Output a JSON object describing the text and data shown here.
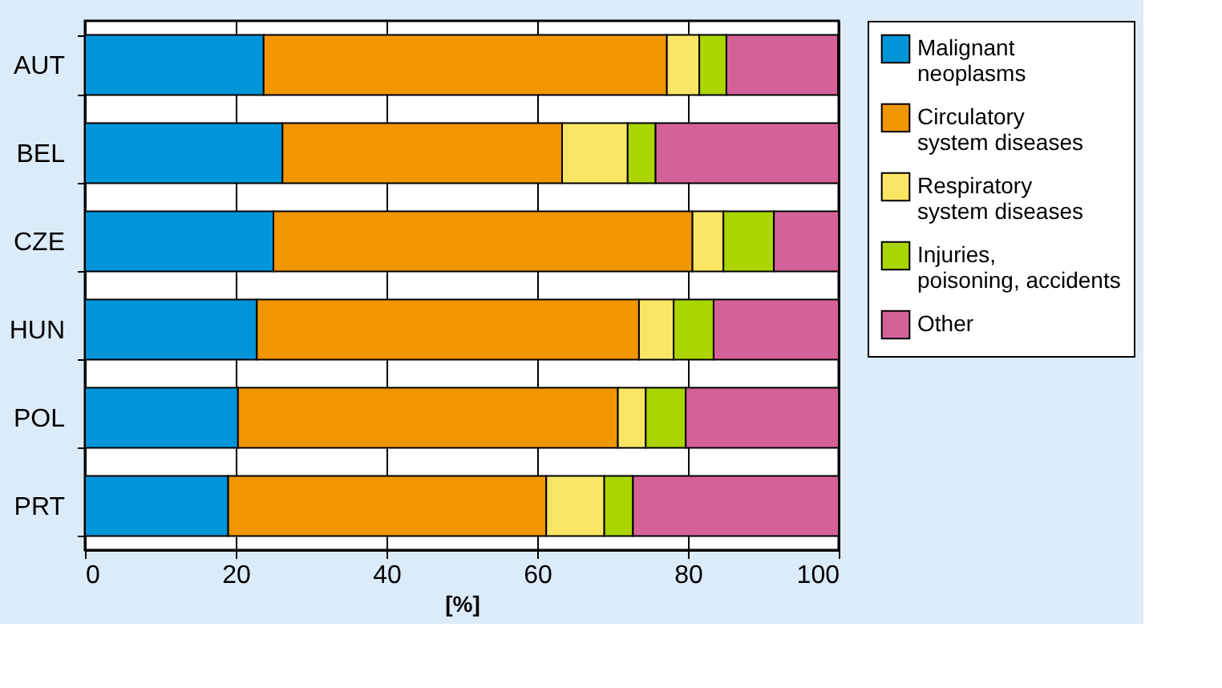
{
  "chart_data": {
    "type": "bar",
    "orientation": "horizontal",
    "stacked": true,
    "categories": [
      "AUT",
      "BEL",
      "CZE",
      "HUN",
      "POL",
      "PRT"
    ],
    "series": [
      {
        "name": "Malignant neoplasms",
        "color": "#0095d9",
        "values": [
          23.7,
          26.2,
          25.0,
          22.8,
          20.3,
          19.0
        ]
      },
      {
        "name": "Circulatory system diseases",
        "color": "#f09600",
        "values": [
          53.5,
          37.1,
          55.6,
          50.7,
          50.4,
          42.2
        ]
      },
      {
        "name": "Respiratory system diseases",
        "color": "#fae664",
        "values": [
          4.3,
          8.7,
          4.1,
          4.6,
          3.7,
          7.7
        ]
      },
      {
        "name": "Injuries, poisoning, accidents",
        "color": "#aad500",
        "values": [
          3.6,
          3.7,
          6.7,
          5.3,
          5.3,
          3.8
        ]
      },
      {
        "name": "Other",
        "color": "#d46299",
        "values": [
          14.8,
          24.3,
          8.6,
          16.6,
          20.3,
          27.3
        ]
      }
    ],
    "xlabel": "[%]",
    "xlim": [
      0,
      100
    ],
    "xticks": [
      0,
      20,
      40,
      60,
      80,
      100
    ],
    "grid": "x",
    "legend": "right"
  }
}
